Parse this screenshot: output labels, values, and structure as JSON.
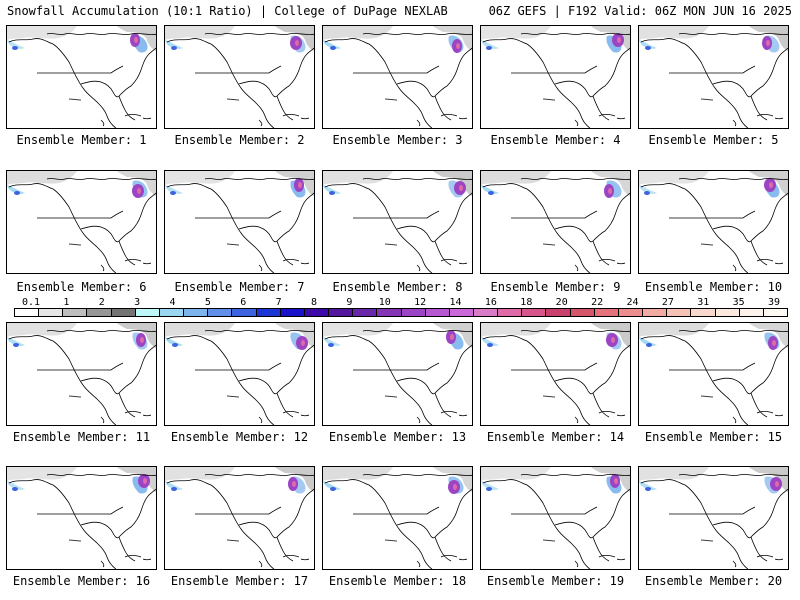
{
  "header": {
    "left": "Snowfall Accumulation (10:1 Ratio) | College of DuPage NEXLAB",
    "right": "06Z GEFS | F192 Valid: 06Z MON JUN 16 2025"
  },
  "panels": [
    {
      "label": "Ensemble Member: 1"
    },
    {
      "label": "Ensemble Member: 2"
    },
    {
      "label": "Ensemble Member: 3"
    },
    {
      "label": "Ensemble Member: 4"
    },
    {
      "label": "Ensemble Member: 5"
    },
    {
      "label": "Ensemble Member: 6"
    },
    {
      "label": "Ensemble Member: 7"
    },
    {
      "label": "Ensemble Member: 8"
    },
    {
      "label": "Ensemble Member: 9"
    },
    {
      "label": "Ensemble Member: 10"
    },
    {
      "label": "Ensemble Member: 11"
    },
    {
      "label": "Ensemble Member: 12"
    },
    {
      "label": "Ensemble Member: 13"
    },
    {
      "label": "Ensemble Member: 14"
    },
    {
      "label": "Ensemble Member: 15"
    },
    {
      "label": "Ensemble Member: 16"
    },
    {
      "label": "Ensemble Member: 17"
    },
    {
      "label": "Ensemble Member: 18"
    },
    {
      "label": "Ensemble Member: 19"
    },
    {
      "label": "Ensemble Member: 20"
    }
  ],
  "legend": {
    "ticks": [
      "0.1",
      "1",
      "2",
      "3",
      "4",
      "5",
      "6",
      "7",
      "8",
      "9",
      "10",
      "12",
      "14",
      "16",
      "18",
      "20",
      "22",
      "24",
      "27",
      "31",
      "35",
      "39"
    ],
    "colors": [
      "#ffffff",
      "#e6e6e6",
      "#bdbdbd",
      "#969696",
      "#737373",
      "#bdf7f7",
      "#9ad6f0",
      "#7db4ec",
      "#5f8fe8",
      "#3d63e0",
      "#1c36d6",
      "#1a12c8",
      "#3c0aa6",
      "#52179c",
      "#6a26a8",
      "#8335b6",
      "#9c45c4",
      "#b457d0",
      "#cc69d8",
      "#d87cc8",
      "#de6aa8",
      "#d6558a",
      "#c8406c",
      "#d5566a",
      "#e3727a",
      "#ec8e8e",
      "#f2aaa4",
      "#f5c2b6",
      "#f8d8cc",
      "#fbe8de",
      "#fdf3ec",
      "#fff9f4"
    ]
  }
}
